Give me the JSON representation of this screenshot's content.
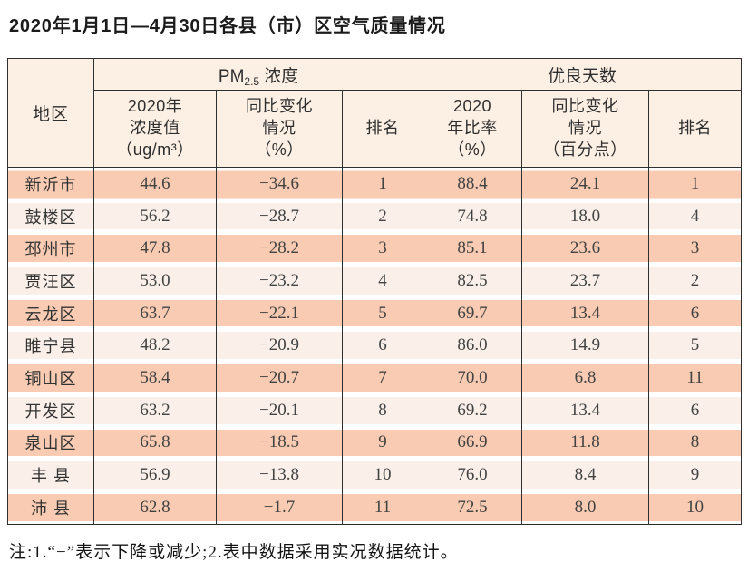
{
  "title": "2020年1月1日—4月30日各县（市）区空气质量情况",
  "note": "注:1.“−”表示下降或减少;2.表中数据采用实况数据统计。",
  "colors": {
    "row_salmon": "#f8cbb2",
    "row_light": "#fbf0e9",
    "header_bg": "#fcefe3",
    "grid_line": "#2f2f2f"
  },
  "table": {
    "region_header": "地区",
    "group_pm25": {
      "prefix": "PM",
      "subscript": "2.5",
      "suffix": "浓度"
    },
    "group_good_days": "优良天数",
    "subheaders": {
      "pm_value": "2020年\n浓度值\n（ug/m³）",
      "pm_change": "同比变化\n情况\n（%）",
      "pm_rank": "排名",
      "good_rate": "2020\n年比率\n（%）",
      "good_change": "同比变化\n情况\n（百分点）",
      "good_rank": "排名"
    },
    "rows": [
      {
        "region": "新沂市",
        "pm_value": "44.6",
        "pm_change": "−34.6",
        "pm_rank": "1",
        "good_rate": "88.4",
        "good_change": "24.1",
        "good_rank": "1"
      },
      {
        "region": "鼓楼区",
        "pm_value": "56.2",
        "pm_change": "−28.7",
        "pm_rank": "2",
        "good_rate": "74.8",
        "good_change": "18.0",
        "good_rank": "4"
      },
      {
        "region": "邳州市",
        "pm_value": "47.8",
        "pm_change": "−28.2",
        "pm_rank": "3",
        "good_rate": "85.1",
        "good_change": "23.6",
        "good_rank": "3"
      },
      {
        "region": "贾汪区",
        "pm_value": "53.0",
        "pm_change": "−23.2",
        "pm_rank": "4",
        "good_rate": "82.5",
        "good_change": "23.7",
        "good_rank": "2"
      },
      {
        "region": "云龙区",
        "pm_value": "63.7",
        "pm_change": "−22.1",
        "pm_rank": "5",
        "good_rate": "69.7",
        "good_change": "13.4",
        "good_rank": "6"
      },
      {
        "region": "睢宁县",
        "pm_value": "48.2",
        "pm_change": "−20.9",
        "pm_rank": "6",
        "good_rate": "86.0",
        "good_change": "14.9",
        "good_rank": "5"
      },
      {
        "region": "铜山区",
        "pm_value": "58.4",
        "pm_change": "−20.7",
        "pm_rank": "7",
        "good_rate": "70.0",
        "good_change": "6.8",
        "good_rank": "11"
      },
      {
        "region": "开发区",
        "pm_value": "63.2",
        "pm_change": "−20.1",
        "pm_rank": "8",
        "good_rate": "69.2",
        "good_change": "13.4",
        "good_rank": "6"
      },
      {
        "region": "泉山区",
        "pm_value": "65.8",
        "pm_change": "−18.5",
        "pm_rank": "9",
        "good_rate": "66.9",
        "good_change": "11.8",
        "good_rank": "8"
      },
      {
        "region": "丰 县",
        "pm_value": "56.9",
        "pm_change": "−13.8",
        "pm_rank": "10",
        "good_rate": "76.0",
        "good_change": "8.4",
        "good_rank": "9"
      },
      {
        "region": "沛 县",
        "pm_value": "62.8",
        "pm_change": "−1.7",
        "pm_rank": "11",
        "good_rate": "72.5",
        "good_change": "8.0",
        "good_rank": "10"
      }
    ]
  }
}
